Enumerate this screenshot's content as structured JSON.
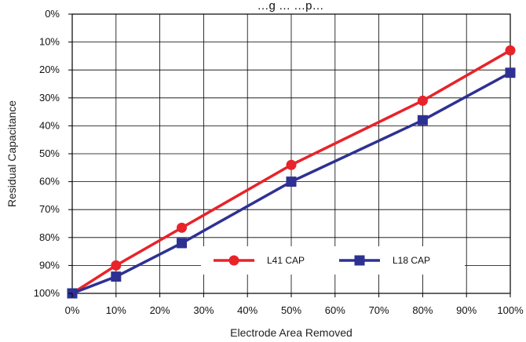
{
  "chart_data": {
    "type": "line",
    "title": "…g … …p…",
    "xlabel": "Electrode Area Removed",
    "ylabel": "Residual Capacitance",
    "x_ticks": [
      "0%",
      "10%",
      "20%",
      "30%",
      "40%",
      "50%",
      "60%",
      "70%",
      "80%",
      "90%",
      "100%"
    ],
    "y_ticks": [
      "0%",
      "10%",
      "20%",
      "30%",
      "40%",
      "50%",
      "60%",
      "70%",
      "80%",
      "90%",
      "100%"
    ],
    "xlim": [
      0,
      100
    ],
    "ylim": [
      0,
      100
    ],
    "y_axis_inverted": true,
    "grid": true,
    "legend_position": "bottom-right, inside plot",
    "series": [
      {
        "name": "L41 CAP",
        "color": "#e8232a",
        "marker": "circle",
        "x": [
          0,
          10,
          25,
          50,
          80,
          100
        ],
        "y": [
          100,
          90,
          76.5,
          54,
          31,
          13
        ]
      },
      {
        "name": "L18 CAP",
        "color": "#2e3192",
        "marker": "square",
        "x": [
          0,
          10,
          25,
          50,
          80,
          100
        ],
        "y": [
          100,
          94,
          82,
          60,
          38,
          21
        ]
      }
    ]
  }
}
